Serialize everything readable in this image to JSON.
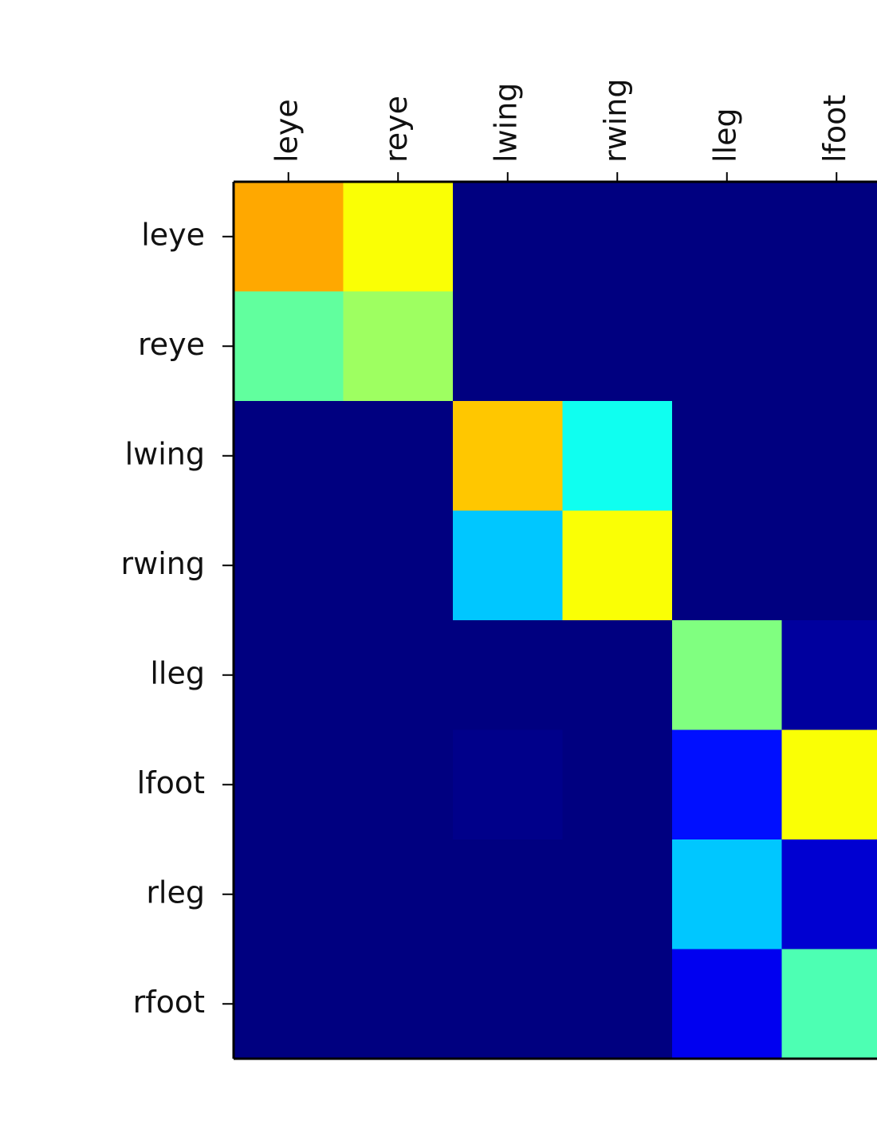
{
  "chart_data": {
    "type": "heatmap",
    "colormap": "jet",
    "x_categories": [
      "leye",
      "reye",
      "lwing",
      "rwing",
      "lleg",
      "lfoot"
    ],
    "y_categories": [
      "leye",
      "reye",
      "lwing",
      "rwing",
      "lleg",
      "lfoot",
      "rleg",
      "rfoot"
    ],
    "values": [
      [
        0.71,
        0.62,
        0,
        0,
        0,
        0
      ],
      [
        0.47,
        0.53,
        0,
        0,
        0,
        0
      ],
      [
        0,
        0,
        0.68,
        0.39,
        0,
        0
      ],
      [
        0,
        0,
        0.32,
        0.62,
        0,
        0
      ],
      [
        0,
        0,
        0,
        0,
        0.5,
        0.03
      ],
      [
        0,
        0,
        0.01,
        0,
        0.14,
        0.62
      ],
      [
        0,
        0,
        0,
        0,
        0.32,
        0.08
      ],
      [
        0,
        0,
        0,
        0,
        0.11,
        0.45
      ]
    ]
  }
}
